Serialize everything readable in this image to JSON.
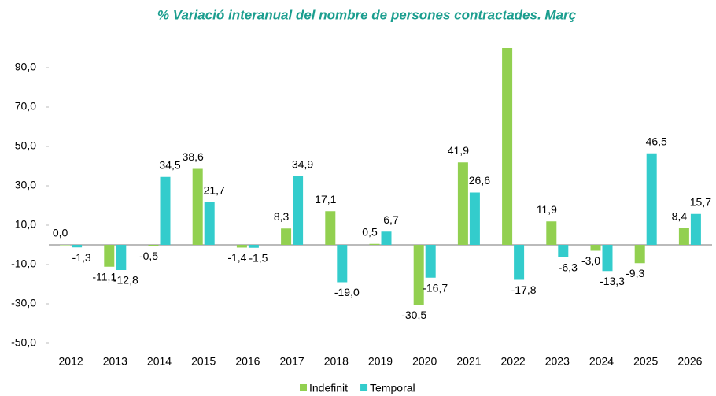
{
  "chart_data": {
    "type": "bar",
    "title": "% Variació interanual  del nombre de persones  contractades.  Març",
    "categories": [
      "2012",
      "2013",
      "2014",
      "2015",
      "2016",
      "2017",
      "2018",
      "2019",
      "2020",
      "2021",
      "2022",
      "2023",
      "2024",
      "2025",
      "2026"
    ],
    "series": [
      {
        "name": "Indefinit",
        "color": "#92d050",
        "values": [
          0.0,
          -11.1,
          -0.5,
          38.6,
          -1.4,
          8.3,
          17.1,
          0.5,
          -30.5,
          41.9,
          100,
          11.9,
          -3.0,
          -9.3,
          8.4
        ],
        "value_labels": [
          "0,0",
          "-11,1",
          "-0,5",
          "38,6",
          "-1,4",
          "8,3",
          "17,1",
          "0,5",
          "-30,5",
          "41,9",
          null,
          "11,9",
          "-3,0",
          "-9,3",
          "8,4"
        ]
      },
      {
        "name": "Temporal",
        "color": "#33cccc",
        "values": [
          -1.3,
          -12.8,
          34.5,
          21.7,
          -1.5,
          34.9,
          -19.0,
          6.7,
          -16.7,
          26.6,
          -17.8,
          -6.3,
          -13.3,
          46.5,
          15.7
        ],
        "value_labels": [
          "-1,3",
          "-12,8",
          "34,5",
          "21,7",
          "-1,5",
          "34,9",
          "-19,0",
          "6,7",
          "-16,7",
          "26,6",
          "-17,8",
          "-6,3",
          "-13,3",
          "46,5",
          "15,7"
        ]
      }
    ],
    "ylim": [
      -50,
      100
    ],
    "yticks": [
      {
        "value": -50,
        "label": "-50,0"
      },
      {
        "value": -30,
        "label": "-30,0"
      },
      {
        "value": -10,
        "label": "-10,0"
      },
      {
        "value": 10,
        "label": "10,0"
      },
      {
        "value": 30,
        "label": "30,0"
      },
      {
        "value": 50,
        "label": "50,0"
      },
      {
        "value": 70,
        "label": "70,0"
      },
      {
        "value": 90,
        "label": "90,0"
      }
    ],
    "legend": "bottom"
  }
}
